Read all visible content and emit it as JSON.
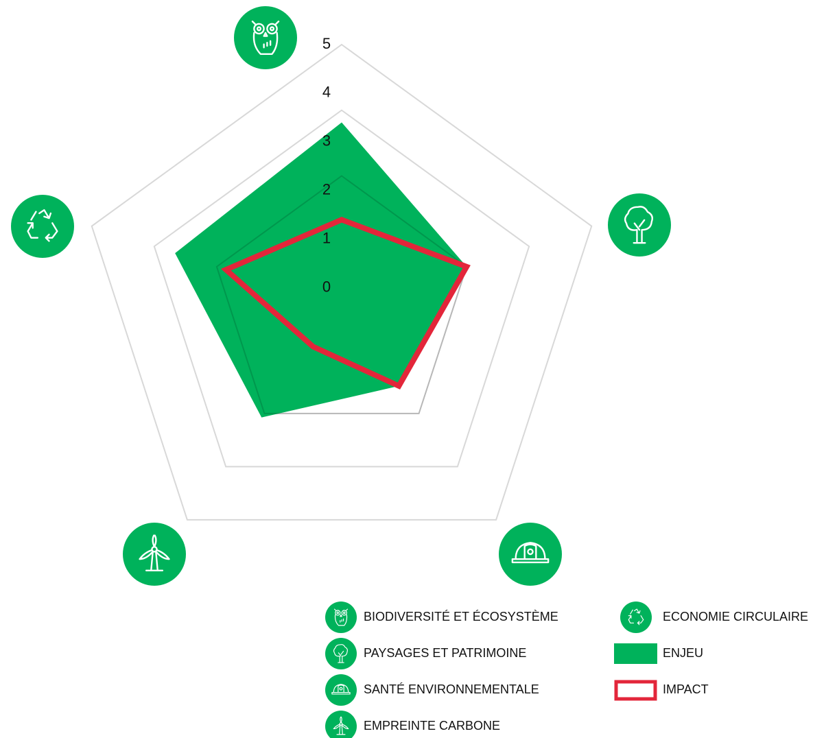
{
  "chart_data": {
    "type": "radar",
    "categories": [
      "BIODIVERSITÉ ET ÉCOSYSTÈME",
      "PAYSAGES ET PATRIMOINE",
      "SANTÉ ENVIRONNEMENTALE",
      "EMPREINTE CARBONE",
      "ECONOMIE CIRCULAIRE"
    ],
    "series": [
      {
        "name": "ENJEU",
        "color": "#00b25b",
        "values": [
          3.4,
          2.3,
          1.6,
          2.4,
          3.2
        ]
      },
      {
        "name": "IMPACT",
        "color": "#e3263a",
        "values": [
          1.4,
          2.3,
          1.6,
          0.6,
          2.1
        ]
      }
    ],
    "ylim": [
      -0.4,
      5
    ],
    "yticks": [
      0,
      1,
      2,
      3,
      4,
      5
    ],
    "grid_levels": [
      2.3,
      3.65,
      5
    ]
  }
}
